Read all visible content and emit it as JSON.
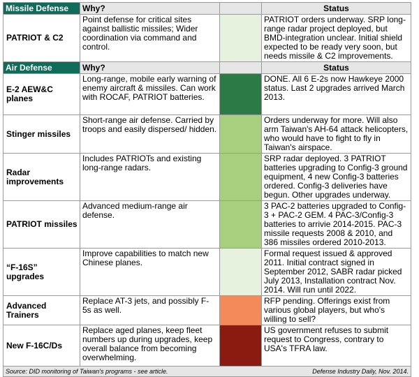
{
  "sections": [
    {
      "title": "Missile Defense",
      "why_header": "Why?",
      "status_header": "Status",
      "rows": [
        {
          "name": "PATRIOT & C2",
          "why": "Point defense for critical sites against ballistic missiles; Wider coordination via command and control.",
          "status_color": "#e6f2dd",
          "status": "PATRIOT orders underway. SRP long-range radar project deployed, but BMD-integration unclear. Initial shield expected to be ready very soon, but needs missile & C2  improvements."
        }
      ]
    },
    {
      "title": "Air Defense",
      "why_header": "Why?",
      "status_header": "Status",
      "rows": [
        {
          "name": "E-2 AEW&C planes",
          "why": "Long-range, mobile early warning of enemy aircraft & missiles. Can work with ROCAF, PATRIOT batteries.",
          "status_color": "#2c7a46",
          "status": "DONE. All 6 E-2s now Hawkeye 2000 status. Last 2 upgrades arrived March 2013."
        },
        {
          "name": "Stinger missiles",
          "why": "Short-range air defense. Carried by troops and easily dispersed/ hidden.",
          "status_color": "#a6cf7e",
          "status": "Orders underway for more. Will also arm Taiwan's AH-64 attack helicopters, who would have to fight to fly in Taiwan's airspace."
        },
        {
          "name": "Radar improvements",
          "why": "Includes PATRIOTs and existing long-range radars.",
          "status_color": "#a6cf7e",
          "status": "SRP radar deployed. 3 PATRIOT batteries upgrading to Config-3 ground equipment, 4 new Config-3 batteries ordered. Config-3 deliveries have begun. Other upgrades underway."
        },
        {
          "name": "PATRIOT missiles",
          "why": "Advanced medium-range air defense.",
          "status_color": "#a6cf7e",
          "status": "3 PAC-2 batteries upgraded to Config-3 + PAC-2 GEM. 4 PAC-3/Config-3 batteries to arrivie 2014-2015. PAC-3 missile requests 2008 & 2010, and 386 missiles ordered 2010-2013."
        },
        {
          "name": "“F-16S” upgrades",
          "why": "Improve capabilities to match new Chinese planes.",
          "status_color": "#e6f2dd",
          "status": "Formal request issued & approved 2011. Initial contract signed in September 2012, SABR radar picked July 2013, Installation contract Nov. 2014. Will run until 2022."
        },
        {
          "name": "Advanced Trainers",
          "why": "Replace AT-3 jets, and possibly F-5s as well.",
          "status_color": "#f48a5a",
          "status": "RFP pending. Offerings exist from various global players, but who's willing to sell?"
        },
        {
          "name": "New F-16C/Ds",
          "why": "Replace aged planes, keep fleet numbers up during upgrades, keep overall balance from becoming overwhelming.",
          "status_color": "#8b1a10",
          "status": "US government refuses to submit request to Congress, contrary to USA's TFRA law."
        }
      ]
    }
  ],
  "footer": {
    "source": "Source: DID monitoring of Taiwan's programs - see article.",
    "credit": "Defense Industry Daily, Nov. 2014."
  }
}
